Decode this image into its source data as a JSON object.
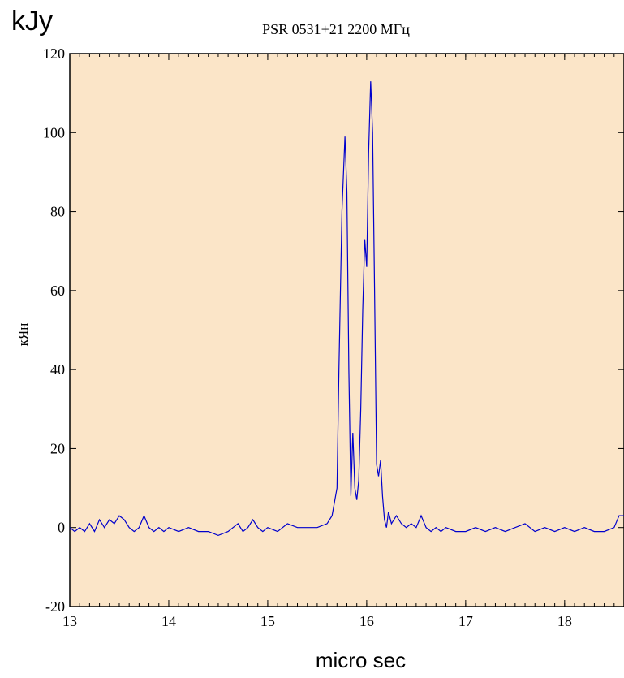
{
  "chart_data": {
    "type": "line",
    "title": "PSR 0531+21    2200 МГц",
    "overlay_unit": "kJy",
    "xlabel": "micro sec",
    "ylabel": "кЯн",
    "xlim": [
      13,
      18.6
    ],
    "ylim": [
      -20,
      120
    ],
    "x_ticks": [
      13,
      14,
      15,
      16,
      17,
      18
    ],
    "y_ticks": [
      -20,
      0,
      20,
      40,
      60,
      80,
      100,
      120
    ],
    "x_tick_labels": [
      "13",
      "14",
      "15",
      "16",
      "17",
      "18"
    ],
    "y_tick_labels": [
      "-20",
      "0",
      "20",
      "40",
      "60",
      "80",
      "100",
      "120"
    ],
    "series": [
      {
        "color": "#0000cc",
        "x": [
          13.0,
          13.05,
          13.1,
          13.15,
          13.2,
          13.25,
          13.3,
          13.35,
          13.4,
          13.45,
          13.5,
          13.55,
          13.6,
          13.65,
          13.7,
          13.75,
          13.8,
          13.85,
          13.9,
          13.95,
          14.0,
          14.1,
          14.2,
          14.3,
          14.4,
          14.5,
          14.6,
          14.65,
          14.7,
          14.75,
          14.8,
          14.85,
          14.9,
          14.95,
          15.0,
          15.1,
          15.2,
          15.3,
          15.4,
          15.5,
          15.6,
          15.65,
          15.7,
          15.72,
          15.75,
          15.78,
          15.8,
          15.82,
          15.84,
          15.86,
          15.88,
          15.9,
          15.92,
          15.94,
          15.96,
          15.98,
          16.0,
          16.02,
          16.04,
          16.06,
          16.08,
          16.1,
          16.12,
          16.14,
          16.16,
          16.18,
          16.2,
          16.22,
          16.25,
          16.3,
          16.35,
          16.4,
          16.45,
          16.5,
          16.55,
          16.6,
          16.65,
          16.7,
          16.75,
          16.8,
          16.9,
          17.0,
          17.1,
          17.2,
          17.3,
          17.4,
          17.5,
          17.6,
          17.7,
          17.8,
          17.9,
          18.0,
          18.1,
          18.2,
          18.3,
          18.4,
          18.5,
          18.55,
          18.6
        ],
        "y": [
          0,
          -1,
          0,
          -1,
          1,
          -1,
          2,
          0,
          2,
          1,
          3,
          2,
          0,
          -1,
          0,
          3,
          0,
          -1,
          0,
          -1,
          0,
          -1,
          0,
          -1,
          -1,
          -2,
          -1,
          0,
          1,
          -1,
          0,
          2,
          0,
          -1,
          0,
          -1,
          1,
          0,
          0,
          0,
          1,
          3,
          10,
          40,
          80,
          99,
          85,
          40,
          8,
          24,
          10,
          7,
          12,
          30,
          55,
          73,
          66,
          95,
          113,
          100,
          60,
          16,
          13,
          17,
          8,
          2,
          0,
          4,
          1,
          3,
          1,
          0,
          1,
          0,
          3,
          0,
          -1,
          0,
          -1,
          0,
          -1,
          -1,
          0,
          -1,
          0,
          -1,
          0,
          1,
          -1,
          0,
          -1,
          0,
          -1,
          0,
          -1,
          -1,
          0,
          3,
          3
        ]
      }
    ]
  }
}
